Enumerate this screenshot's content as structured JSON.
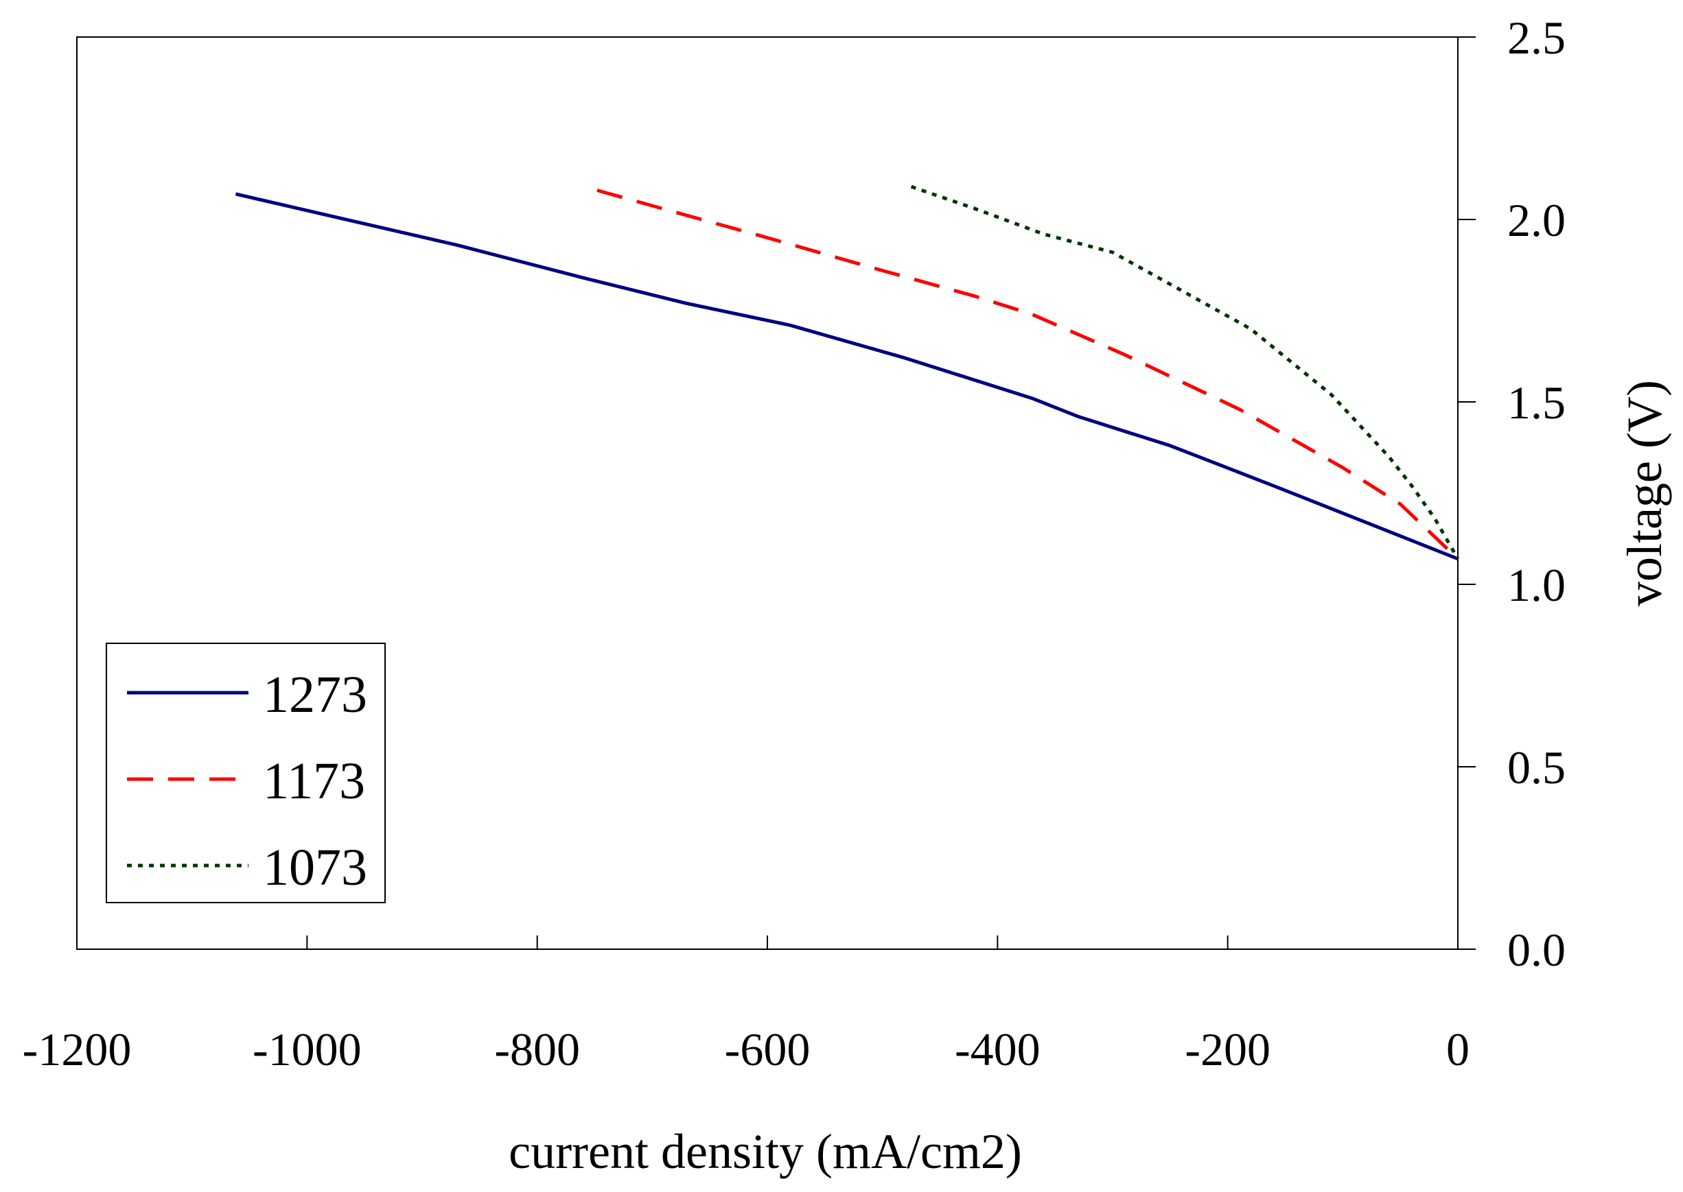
{
  "chart_data": {
    "type": "line",
    "title": "",
    "xlabel": "current density (mA/cm2)",
    "ylabel": "voltage (V)",
    "xlim": [
      -1200,
      0
    ],
    "ylim": [
      0.0,
      2.5
    ],
    "x_ticks": [
      -1200,
      -1000,
      -800,
      -600,
      -400,
      -200,
      0
    ],
    "x_tick_labels": [
      "-1200",
      "-1000",
      "-800",
      "-600",
      "-400",
      "-200",
      "0"
    ],
    "y_ticks": [
      0.0,
      0.5,
      1.0,
      1.5,
      2.0,
      2.5
    ],
    "y_tick_labels": [
      "0.0",
      "0.5",
      "1.0",
      "1.5",
      "2.0",
      "2.5"
    ],
    "y_axis_side": "right",
    "grid": false,
    "legend_position": "bottom-left",
    "series": [
      {
        "name": "1273",
        "color": "#000080",
        "style": "solid",
        "points": [
          [
            -1062,
            2.07
          ],
          [
            -980,
            2.01
          ],
          [
            -870,
            1.93
          ],
          [
            -760,
            1.84
          ],
          [
            -670,
            1.77
          ],
          [
            -580,
            1.71
          ],
          [
            -480,
            1.62
          ],
          [
            -370,
            1.51
          ],
          [
            -330,
            1.46
          ],
          [
            -250,
            1.38
          ],
          [
            -160,
            1.27
          ],
          [
            -80,
            1.17
          ],
          [
            0,
            1.07
          ]
        ]
      },
      {
        "name": "1173",
        "color": "#ff0000",
        "style": "dashed",
        "points": [
          [
            -748,
            2.08
          ],
          [
            -680,
            2.02
          ],
          [
            -600,
            1.95
          ],
          [
            -500,
            1.86
          ],
          [
            -420,
            1.79
          ],
          [
            -370,
            1.74
          ],
          [
            -290,
            1.63
          ],
          [
            -190,
            1.48
          ],
          [
            -100,
            1.32
          ],
          [
            -50,
            1.22
          ],
          [
            0,
            1.07
          ]
        ]
      },
      {
        "name": "1073",
        "color": "#003300",
        "style": "dotted",
        "points": [
          [
            -475,
            2.09
          ],
          [
            -420,
            2.03
          ],
          [
            -360,
            1.96
          ],
          [
            -300,
            1.91
          ],
          [
            -260,
            1.84
          ],
          [
            -180,
            1.7
          ],
          [
            -110,
            1.52
          ],
          [
            -60,
            1.35
          ],
          [
            -40,
            1.27
          ],
          [
            -20,
            1.18
          ],
          [
            0,
            1.07
          ]
        ]
      }
    ]
  }
}
